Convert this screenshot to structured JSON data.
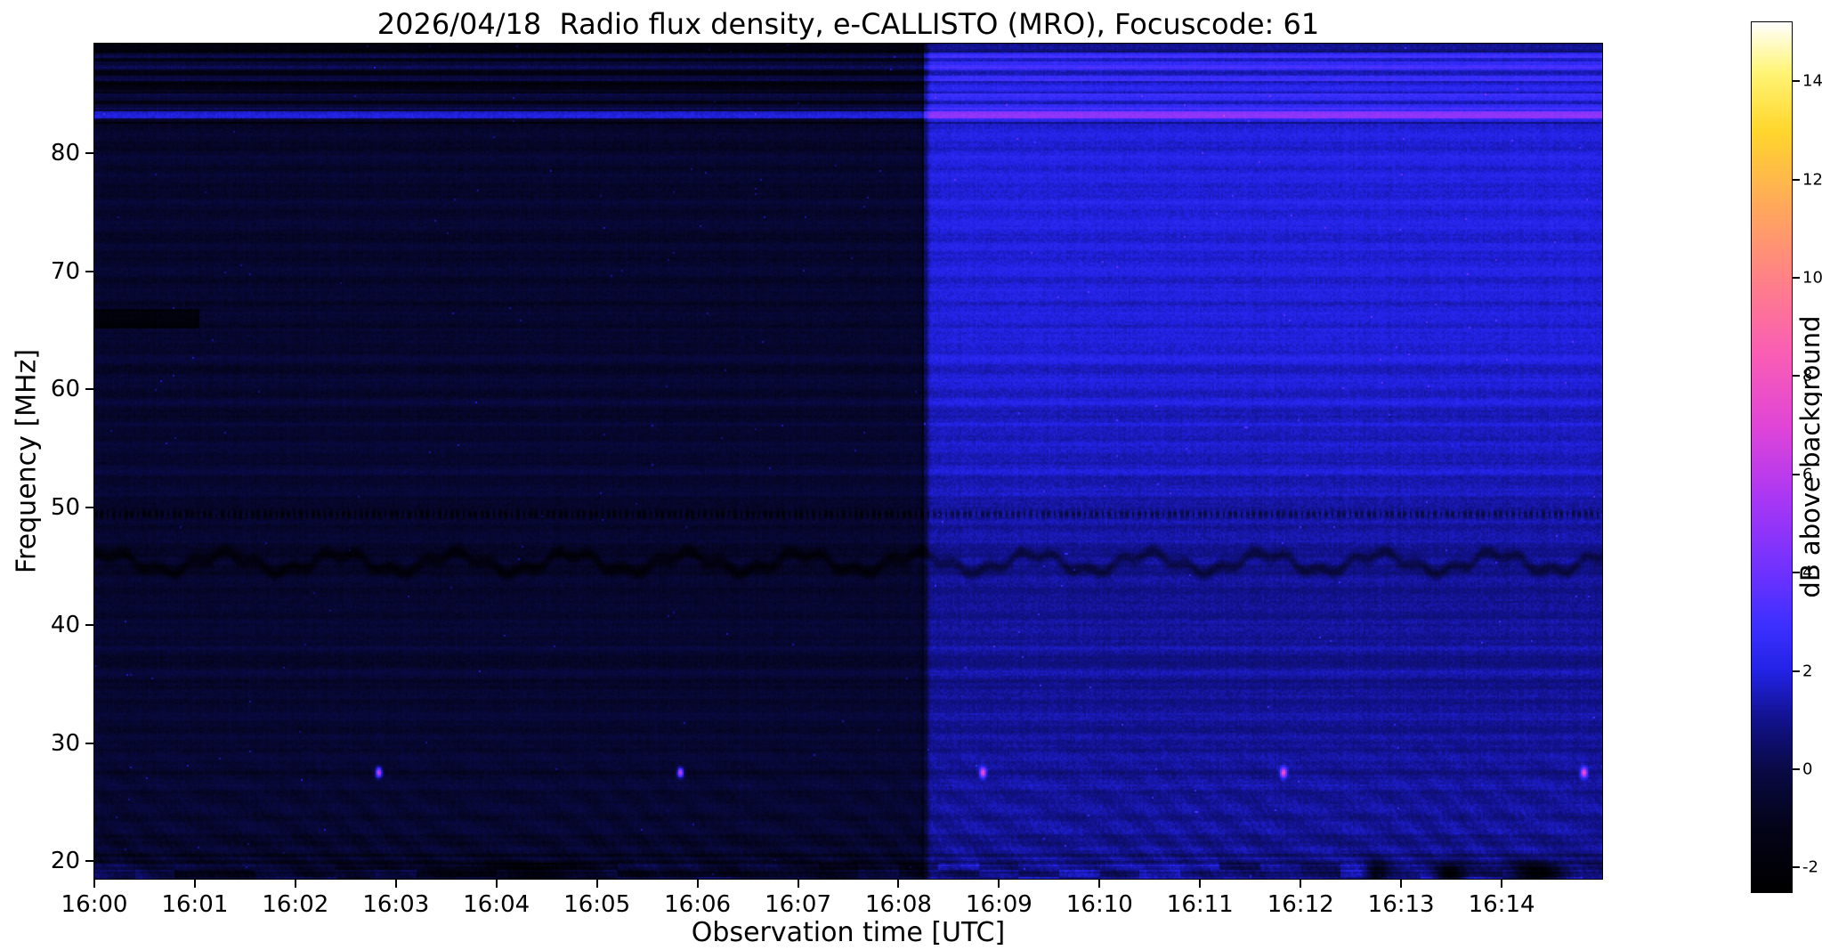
{
  "chart_data": {
    "type": "heatmap",
    "title": "2026/04/18  Radio flux density, e-CALLISTO (MRO), Focuscode: 61",
    "xlabel": "Observation time [UTC]",
    "ylabel": "Frequency [MHz]",
    "colorbar_label": "dB above background",
    "x_ticks": [
      "16:00",
      "16:01",
      "16:02",
      "16:03",
      "16:04",
      "16:05",
      "16:06",
      "16:07",
      "16:08",
      "16:09",
      "16:10",
      "16:11",
      "16:12",
      "16:13",
      "16:14"
    ],
    "x_range_minutes": [
      0,
      15
    ],
    "y_ticks": [
      20,
      30,
      40,
      50,
      60,
      70,
      80
    ],
    "y_range_mhz": [
      18.5,
      89.3
    ],
    "colorbar_ticks": [
      -2,
      0,
      2,
      4,
      6,
      8,
      10,
      12,
      14
    ],
    "color_range_db": [
      -2.5,
      15.2
    ],
    "grid": false,
    "legend": "colorbar-right",
    "colormap_stops": [
      [
        -2.5,
        "#000000"
      ],
      [
        -1.2,
        "#040419"
      ],
      [
        0.0,
        "#0a0a46"
      ],
      [
        1.0,
        "#12128c"
      ],
      [
        2.0,
        "#2323e6"
      ],
      [
        2.9,
        "#3c30ff"
      ],
      [
        4.0,
        "#6e32ff"
      ],
      [
        5.5,
        "#aa37f5"
      ],
      [
        7.0,
        "#e146d7"
      ],
      [
        8.5,
        "#fa5fb4"
      ],
      [
        10.0,
        "#ff8287"
      ],
      [
        11.5,
        "#ffaa5a"
      ],
      [
        13.0,
        "#ffd72d"
      ],
      [
        14.2,
        "#fff578"
      ],
      [
        15.2,
        "#ffffff"
      ]
    ],
    "features": {
      "background_left_db": -0.55,
      "background_right_db": 1.35,
      "transition_time_min": 8.25,
      "rfi_dashed_line_mhz": 49.4,
      "wavy_absorption_band_mhz": 45.3,
      "bright_line_mhz": 83.3,
      "top_band_mhz": [
        82.5,
        88.6
      ],
      "left_dark_bar_mhz": 66,
      "left_dark_bar_end_min": 1.05,
      "pink_dot_freq_mhz": 27.5,
      "pink_dot_db": 7.3,
      "pink_dot_times_min": [
        2.83,
        5.83,
        8.84,
        11.83,
        14.82
      ],
      "dark_blob_freq_mhz": 19.0,
      "dark_blobs": [
        {
          "t": 12.75,
          "w": 0.1
        },
        {
          "t": 13.5,
          "w": 0.14
        },
        {
          "t": 14.35,
          "w": 0.28
        }
      ]
    }
  }
}
